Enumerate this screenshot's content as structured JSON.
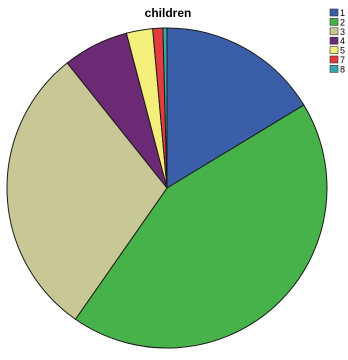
{
  "chart_data": {
    "type": "pie",
    "title": "children",
    "legend_position": "top-right",
    "slices": [
      {
        "label": "1",
        "value": 16.0,
        "color": "#3b5ea8"
      },
      {
        "label": "2",
        "value": 42.5,
        "color": "#48b24a"
      },
      {
        "label": "3",
        "value": 29.0,
        "color": "#c8c896"
      },
      {
        "label": "4",
        "value": 6.5,
        "color": "#6b2a73"
      },
      {
        "label": "5",
        "value": 2.6,
        "color": "#f4ef7a"
      },
      {
        "label": "7",
        "value": 1.0,
        "color": "#e43c3c"
      },
      {
        "label": "8",
        "value": 0.4,
        "color": "#36a6b0"
      }
    ]
  }
}
